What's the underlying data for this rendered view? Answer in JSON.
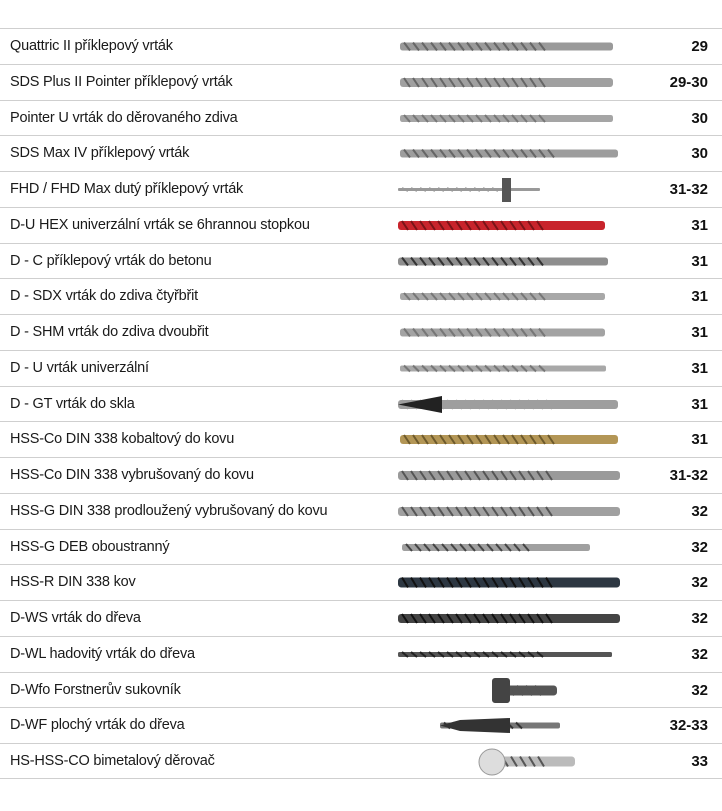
{
  "table": {
    "rows": [
      [
        "Quattric II příklepový vrták",
        "29"
      ],
      [
        "SDS Plus II Pointer příklepový vrták",
        "29-30"
      ],
      [
        "Pointer U vrták do děrovaného zdiva",
        "30"
      ],
      [
        "SDS Max IV příklepový vrták",
        "30"
      ],
      [
        "FHD / FHD Max dutý příklepový vrták",
        "31-32"
      ],
      [
        "D-U HEX univerzální vrták se 6hrannou stopkou",
        "31"
      ],
      [
        "D - C příklepový vrták do betonu",
        "31"
      ],
      [
        "D - SDX vrták do zdiva čtyřbřit",
        "31"
      ],
      [
        "D - SHM vrták do zdiva dvoubřit",
        "31"
      ],
      [
        "D - U vrták univerzální",
        "31"
      ],
      [
        "D - GT vrták do skla",
        "31"
      ],
      [
        "HSS-Co DIN 338 kobaltový do kovu",
        "31"
      ],
      [
        "HSS-Co DIN 338 vybrušovaný do kovu",
        "31-32"
      ],
      [
        "HSS-G DIN 338 prodloužený vybrušovaný do kovu",
        "32"
      ],
      [
        "HSS-G DEB oboustranný",
        "32"
      ],
      [
        "HSS-R DIN 338 kov",
        "32"
      ],
      [
        "D-WS vrták do dřeva",
        "32"
      ],
      [
        "D-WL hadovitý vrták do dřeva",
        "32"
      ],
      [
        "D-Wfo Forstnerův sukovník",
        "32"
      ],
      [
        "D-WF plochý vrták do dřeva",
        "32-33"
      ],
      [
        "HS-HSS-CO bimetalový děrovač",
        "33"
      ]
    ]
  }
}
